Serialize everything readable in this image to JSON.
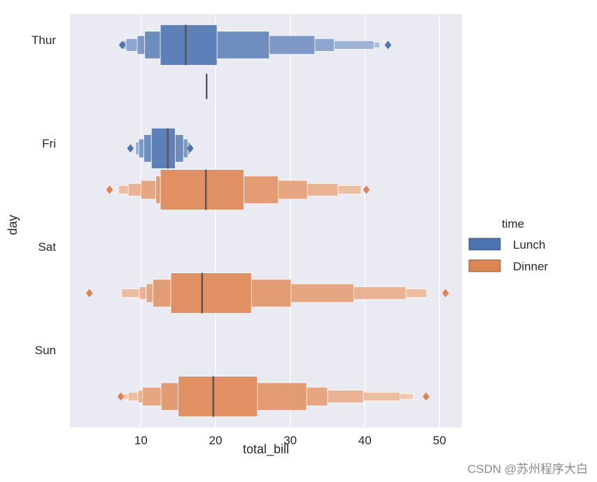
{
  "watermark": "CSDN @苏州程序大白",
  "chart_data": {
    "type": "boxen",
    "orientation": "horizontal",
    "title": "",
    "xlabel": "total_bill",
    "ylabel": "day",
    "xlim": [
      0.5,
      53
    ],
    "xticks": [
      10,
      20,
      30,
      40,
      50
    ],
    "categories": [
      "Thur",
      "Fri",
      "Sat",
      "Sun"
    ],
    "grid": true,
    "legend": {
      "title": "time",
      "placement": "center-right",
      "entries": [
        {
          "name": "Lunch",
          "color": "#4c72b0"
        },
        {
          "name": "Dinner",
          "color": "#dd8452"
        }
      ]
    },
    "series": [
      {
        "name": "Lunch",
        "color": "#4c72b0",
        "boxes": [
          {
            "category": "Thur",
            "median": 16.0,
            "levels": [
              [
                12.6,
                20.2
              ],
              [
                10.5,
                27.2
              ],
              [
                9.5,
                33.3
              ],
              [
                8.0,
                35.9
              ],
              [
                7.6,
                41.2
              ],
              [
                7.5,
                42.0
              ]
            ],
            "outliers": [
              7.5,
              43.1
            ]
          },
          {
            "category": "Fri",
            "median": 13.6,
            "levels": [
              [
                11.4,
                14.6
              ],
              [
                10.4,
                15.7
              ],
              [
                9.7,
                16.3
              ],
              [
                9.3,
                16.6
              ]
            ],
            "outliers": [
              8.6,
              16.6
            ]
          }
        ]
      },
      {
        "name": "Dinner",
        "color": "#dd8452",
        "boxes": [
          {
            "category": "Thur",
            "median": 18.8,
            "levels": [],
            "outliers": []
          },
          {
            "category": "Fri",
            "median": 18.7,
            "levels": [
              [
                12.6,
                23.8
              ],
              [
                12.0,
                28.4
              ],
              [
                10.0,
                32.3
              ],
              [
                8.3,
                36.4
              ],
              [
                7.0,
                39.5
              ]
            ],
            "outliers": [
              5.8,
              40.2
            ]
          },
          {
            "category": "Sat",
            "median": 18.2,
            "levels": [
              [
                14.0,
                24.8
              ],
              [
                11.6,
                30.1
              ],
              [
                10.7,
                38.5
              ],
              [
                9.8,
                45.5
              ],
              [
                7.4,
                48.3
              ]
            ],
            "outliers": [
              3.1,
              50.8
            ]
          },
          {
            "category": "Sun",
            "median": 19.7,
            "levels": [
              [
                15.0,
                25.6
              ],
              [
                12.7,
                32.2
              ],
              [
                10.2,
                35.0
              ],
              [
                9.6,
                39.8
              ],
              [
                8.3,
                44.7
              ],
              [
                7.6,
                46.5
              ]
            ],
            "outliers": [
              7.3,
              48.2
            ]
          }
        ]
      }
    ]
  }
}
